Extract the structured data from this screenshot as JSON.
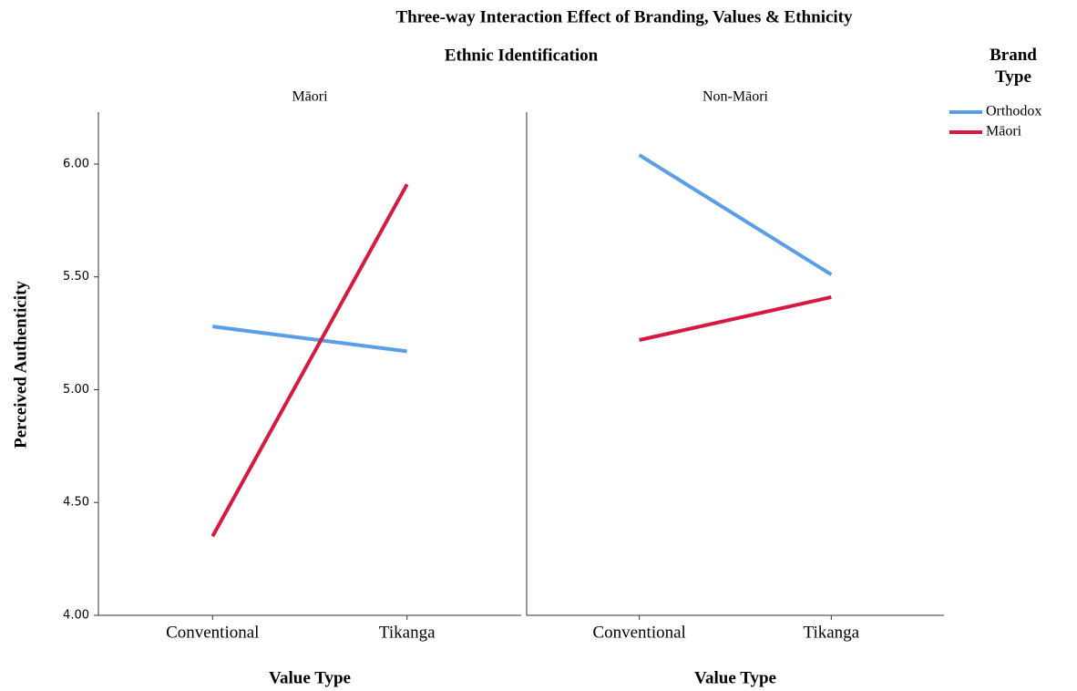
{
  "chart_data": {
    "type": "line",
    "title": "Three-way Interaction Effect of Branding, Values & Ethnicity",
    "panel_title": "Ethnic Identification",
    "ylabel": "Perceived Authenticity",
    "xlabel": "Value Type",
    "legend_title": "Brand Type",
    "categories": [
      "Conventional",
      "Tikanga"
    ],
    "ylim": [
      4,
      6.23
    ],
    "yticks": [
      {
        "value": 4,
        "label": "4.00"
      },
      {
        "value": 4.5,
        "label": "4.50"
      },
      {
        "value": 5,
        "label": "5.00"
      },
      {
        "value": 5.5,
        "label": "5.50"
      },
      {
        "value": 6,
        "label": "6.00"
      }
    ],
    "grid": false,
    "legend_position": "right",
    "series": [
      {
        "name": "Orthodox",
        "color": "#5b9ee8"
      },
      {
        "name": "Māori",
        "color": "#d7193f"
      }
    ],
    "panels": [
      {
        "name": "Māori",
        "series": [
          {
            "values": [
              5.28,
              5.17
            ]
          },
          {
            "values": [
              4.35,
              5.91
            ]
          }
        ]
      },
      {
        "name": "Non-Māori",
        "series": [
          {
            "values": [
              6.04,
              5.51
            ]
          },
          {
            "values": [
              5.22,
              5.41
            ]
          }
        ]
      }
    ]
  }
}
